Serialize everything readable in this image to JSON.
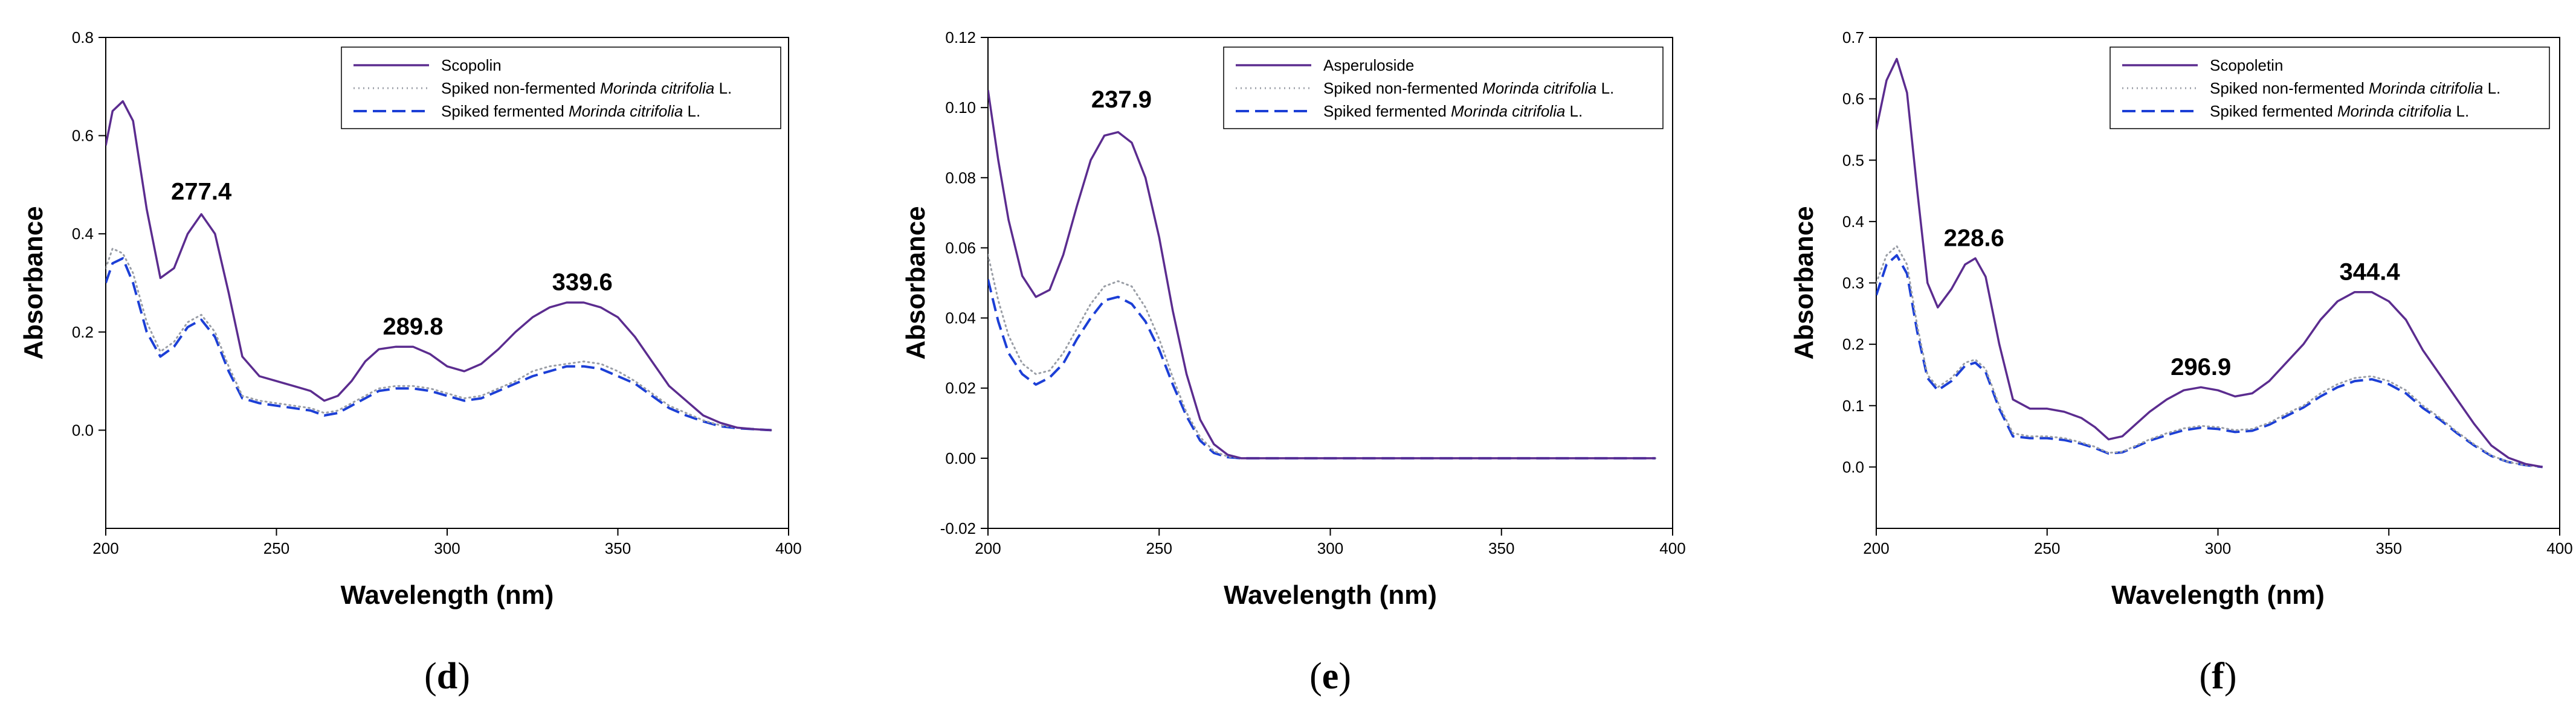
{
  "chart_data": [
    {
      "type": "line",
      "panel_label": "d",
      "xlabel": "Wavelength (nm)",
      "ylabel": "Absorbance",
      "xlim": [
        200,
        400
      ],
      "ylim": [
        -0.2,
        0.8
      ],
      "xticks": [
        200,
        250,
        300,
        350,
        400
      ],
      "yticks": [
        0.0,
        0.2,
        0.4,
        0.6,
        0.8
      ],
      "ytick_labels": [
        "0.0",
        "0.2",
        "0.4",
        "0.6",
        "0.8"
      ],
      "grid": false,
      "legend_position": "top-right",
      "legend": [
        {
          "prefix": "Scopolin",
          "italic": "",
          "suffix": ""
        },
        {
          "prefix": "Spiked non-fermented ",
          "italic": "Morinda citrifolia",
          "suffix": " L."
        },
        {
          "prefix": "Spiked fermented ",
          "italic": "Morinda citrifolia",
          "suffix": " L."
        }
      ],
      "series": [
        {
          "name": "Scopolin",
          "color": "#5b2c8f",
          "style": "solid",
          "x": [
            200,
            202,
            205,
            208,
            212,
            216,
            220,
            224,
            228,
            232,
            236,
            240,
            245,
            250,
            255,
            260,
            264,
            268,
            272,
            276,
            280,
            285,
            290,
            295,
            300,
            305,
            310,
            315,
            320,
            325,
            330,
            335,
            340,
            345,
            350,
            355,
            360,
            365,
            370,
            375,
            380,
            385,
            390,
            395
          ],
          "y": [
            0.58,
            0.65,
            0.67,
            0.63,
            0.45,
            0.31,
            0.33,
            0.4,
            0.44,
            0.4,
            0.28,
            0.15,
            0.11,
            0.1,
            0.09,
            0.08,
            0.06,
            0.07,
            0.1,
            0.14,
            0.165,
            0.17,
            0.17,
            0.155,
            0.13,
            0.12,
            0.135,
            0.165,
            0.2,
            0.23,
            0.25,
            0.26,
            0.26,
            0.25,
            0.23,
            0.19,
            0.14,
            0.09,
            0.06,
            0.03,
            0.015,
            0.005,
            0.002,
            0.0
          ]
        },
        {
          "name": "Spiked non-fermented Morinda citrifolia L.",
          "color": "#9a9ea6",
          "style": "dotted",
          "x": [
            200,
            202,
            205,
            208,
            212,
            216,
            220,
            224,
            228,
            232,
            236,
            240,
            245,
            250,
            255,
            260,
            264,
            268,
            272,
            276,
            280,
            285,
            290,
            295,
            300,
            305,
            310,
            315,
            320,
            325,
            330,
            335,
            340,
            345,
            350,
            355,
            360,
            365,
            370,
            375,
            380,
            385,
            390,
            395
          ],
          "y": [
            0.33,
            0.37,
            0.36,
            0.32,
            0.22,
            0.16,
            0.18,
            0.22,
            0.235,
            0.2,
            0.13,
            0.07,
            0.06,
            0.055,
            0.05,
            0.045,
            0.035,
            0.04,
            0.055,
            0.07,
            0.085,
            0.09,
            0.09,
            0.085,
            0.075,
            0.065,
            0.07,
            0.085,
            0.1,
            0.12,
            0.13,
            0.135,
            0.14,
            0.135,
            0.12,
            0.1,
            0.075,
            0.05,
            0.035,
            0.02,
            0.01,
            0.005,
            0.002,
            0.0
          ]
        },
        {
          "name": "Spiked fermented Morinda citrifolia L.",
          "color": "#1c3fd6",
          "style": "dashed",
          "x": [
            200,
            202,
            205,
            208,
            212,
            216,
            220,
            224,
            228,
            232,
            236,
            240,
            245,
            250,
            255,
            260,
            264,
            268,
            272,
            276,
            280,
            285,
            290,
            295,
            300,
            305,
            310,
            315,
            320,
            325,
            330,
            335,
            340,
            345,
            350,
            355,
            360,
            365,
            370,
            375,
            380,
            385,
            390,
            395
          ],
          "y": [
            0.3,
            0.34,
            0.35,
            0.3,
            0.2,
            0.15,
            0.17,
            0.21,
            0.225,
            0.19,
            0.12,
            0.065,
            0.055,
            0.05,
            0.045,
            0.04,
            0.03,
            0.035,
            0.05,
            0.065,
            0.08,
            0.085,
            0.085,
            0.08,
            0.07,
            0.06,
            0.065,
            0.08,
            0.095,
            0.11,
            0.12,
            0.13,
            0.13,
            0.125,
            0.11,
            0.095,
            0.07,
            0.045,
            0.03,
            0.018,
            0.008,
            0.004,
            0.002,
            0.0
          ]
        }
      ],
      "annotations": [
        {
          "text": "277.4",
          "x": 228,
          "y": 0.47
        },
        {
          "text": "289.8",
          "x": 290,
          "y": 0.195
        },
        {
          "text": "339.6",
          "x": 339.6,
          "y": 0.285
        }
      ]
    },
    {
      "type": "line",
      "panel_label": "e",
      "xlabel": "Wavelength (nm)",
      "ylabel": "Absorbance",
      "xlim": [
        200,
        400
      ],
      "ylim": [
        -0.02,
        0.12
      ],
      "xticks": [
        200,
        250,
        300,
        350,
        400
      ],
      "yticks": [
        -0.02,
        0.0,
        0.02,
        0.04,
        0.06,
        0.08,
        0.1,
        0.12
      ],
      "ytick_labels": [
        "-0.02",
        "0.00",
        "0.02",
        "0.04",
        "0.06",
        "0.08",
        "0.10",
        "0.12"
      ],
      "grid": false,
      "legend_position": "top-right",
      "legend": [
        {
          "prefix": "Asperuloside",
          "italic": "",
          "suffix": ""
        },
        {
          "prefix": "Spiked non-fermented ",
          "italic": "Morinda citrifolia",
          "suffix": " L."
        },
        {
          "prefix": "Spiked fermented ",
          "italic": "Morinda citrifolia",
          "suffix": " L."
        }
      ],
      "series": [
        {
          "name": "Asperuloside",
          "color": "#5b2c8f",
          "style": "solid",
          "x": [
            200,
            203,
            206,
            210,
            214,
            218,
            222,
            226,
            230,
            234,
            238,
            242,
            246,
            250,
            254,
            258,
            262,
            266,
            270,
            274,
            280,
            290,
            300,
            320,
            350,
            375,
            395
          ],
          "y": [
            0.105,
            0.085,
            0.068,
            0.052,
            0.046,
            0.048,
            0.058,
            0.072,
            0.085,
            0.092,
            0.093,
            0.09,
            0.08,
            0.063,
            0.042,
            0.024,
            0.011,
            0.004,
            0.001,
            0.0,
            0.0,
            0.0,
            0.0,
            0.0,
            0.0,
            0.0,
            0.0
          ]
        },
        {
          "name": "Spiked non-fermented Morinda citrifolia L.",
          "color": "#9a9ea6",
          "style": "dotted",
          "x": [
            200,
            203,
            206,
            210,
            214,
            218,
            222,
            226,
            230,
            234,
            238,
            242,
            246,
            250,
            254,
            258,
            262,
            266,
            270,
            274,
            280,
            290,
            300,
            320,
            350,
            375,
            395
          ],
          "y": [
            0.058,
            0.045,
            0.035,
            0.027,
            0.024,
            0.025,
            0.03,
            0.037,
            0.044,
            0.049,
            0.0505,
            0.049,
            0.043,
            0.034,
            0.023,
            0.013,
            0.006,
            0.002,
            0.0005,
            0.0,
            0.0,
            0.0,
            0.0,
            0.0,
            0.0,
            0.0,
            0.0
          ]
        },
        {
          "name": "Spiked fermented Morinda citrifolia L.",
          "color": "#1c3fd6",
          "style": "dashed",
          "x": [
            200,
            203,
            206,
            210,
            214,
            218,
            222,
            226,
            230,
            234,
            238,
            242,
            246,
            250,
            254,
            258,
            262,
            266,
            270,
            274,
            280,
            290,
            300,
            320,
            350,
            375,
            395
          ],
          "y": [
            0.051,
            0.039,
            0.03,
            0.024,
            0.021,
            0.023,
            0.027,
            0.034,
            0.04,
            0.045,
            0.046,
            0.044,
            0.039,
            0.031,
            0.021,
            0.012,
            0.005,
            0.0015,
            0.0003,
            0.0,
            0.0,
            0.0,
            0.0,
            0.0,
            0.0,
            0.0,
            0.0
          ]
        }
      ],
      "annotations": [
        {
          "text": "237.9",
          "x": 239,
          "y": 0.1
        }
      ]
    },
    {
      "type": "line",
      "panel_label": "f",
      "xlabel": "Wavelength (nm)",
      "ylabel": "Absorbance",
      "xlim": [
        200,
        400
      ],
      "ylim": [
        -0.1,
        0.7
      ],
      "xticks": [
        200,
        250,
        300,
        350,
        400
      ],
      "yticks": [
        0.0,
        0.1,
        0.2,
        0.3,
        0.4,
        0.5,
        0.6,
        0.7
      ],
      "ytick_labels": [
        "0.0",
        "0.1",
        "0.2",
        "0.3",
        "0.4",
        "0.5",
        "0.6",
        "0.7"
      ],
      "grid": false,
      "legend_position": "top-right",
      "legend": [
        {
          "prefix": "Scopoletin",
          "italic": "",
          "suffix": ""
        },
        {
          "prefix": "Spiked non-fermented ",
          "italic": "Morinda citrifolia",
          "suffix": " L."
        },
        {
          "prefix": "Spiked fermented ",
          "italic": "Morinda citrifolia",
          "suffix": " L."
        }
      ],
      "series": [
        {
          "name": "Scopoletin",
          "color": "#5b2c8f",
          "style": "solid",
          "x": [
            200,
            203,
            206,
            209,
            212,
            215,
            218,
            222,
            226,
            229,
            232,
            236,
            240,
            245,
            250,
            255,
            260,
            264,
            268,
            272,
            276,
            280,
            285,
            290,
            295,
            300,
            305,
            310,
            315,
            320,
            325,
            330,
            335,
            340,
            345,
            350,
            355,
            360,
            365,
            370,
            375,
            380,
            385,
            390,
            395
          ],
          "y": [
            0.55,
            0.63,
            0.665,
            0.61,
            0.45,
            0.3,
            0.26,
            0.29,
            0.33,
            0.34,
            0.31,
            0.2,
            0.11,
            0.095,
            0.095,
            0.09,
            0.08,
            0.065,
            0.045,
            0.05,
            0.07,
            0.09,
            0.11,
            0.125,
            0.13,
            0.125,
            0.115,
            0.12,
            0.14,
            0.17,
            0.2,
            0.24,
            0.27,
            0.285,
            0.285,
            0.27,
            0.24,
            0.19,
            0.15,
            0.11,
            0.07,
            0.035,
            0.015,
            0.005,
            0.0
          ]
        },
        {
          "name": "Spiked non-fermented Morinda citrifolia L.",
          "color": "#9a9ea6",
          "style": "dotted",
          "x": [
            200,
            203,
            206,
            209,
            212,
            215,
            218,
            222,
            226,
            229,
            232,
            236,
            240,
            245,
            250,
            255,
            260,
            264,
            268,
            272,
            276,
            280,
            285,
            290,
            295,
            300,
            305,
            310,
            315,
            320,
            325,
            330,
            335,
            340,
            345,
            350,
            355,
            360,
            365,
            370,
            375,
            380,
            385,
            390,
            395
          ],
          "y": [
            0.3,
            0.345,
            0.36,
            0.33,
            0.23,
            0.15,
            0.13,
            0.145,
            0.17,
            0.175,
            0.16,
            0.1,
            0.055,
            0.05,
            0.05,
            0.047,
            0.04,
            0.033,
            0.023,
            0.025,
            0.035,
            0.045,
            0.055,
            0.063,
            0.067,
            0.065,
            0.06,
            0.062,
            0.072,
            0.087,
            0.1,
            0.12,
            0.135,
            0.145,
            0.148,
            0.14,
            0.125,
            0.1,
            0.08,
            0.057,
            0.037,
            0.019,
            0.008,
            0.003,
            0.0
          ]
        },
        {
          "name": "Spiked fermented Morinda citrifolia L.",
          "color": "#1c3fd6",
          "style": "dashed",
          "x": [
            200,
            203,
            206,
            209,
            212,
            215,
            218,
            222,
            226,
            229,
            232,
            236,
            240,
            245,
            250,
            255,
            260,
            264,
            268,
            272,
            276,
            280,
            285,
            290,
            295,
            300,
            305,
            310,
            315,
            320,
            325,
            330,
            335,
            340,
            345,
            350,
            355,
            360,
            365,
            370,
            375,
            380,
            385,
            390,
            395
          ],
          "y": [
            0.28,
            0.33,
            0.345,
            0.315,
            0.22,
            0.145,
            0.125,
            0.14,
            0.165,
            0.17,
            0.155,
            0.095,
            0.05,
            0.047,
            0.047,
            0.044,
            0.038,
            0.031,
            0.022,
            0.024,
            0.033,
            0.043,
            0.052,
            0.06,
            0.064,
            0.062,
            0.057,
            0.059,
            0.069,
            0.083,
            0.097,
            0.115,
            0.13,
            0.14,
            0.143,
            0.135,
            0.12,
            0.096,
            0.077,
            0.055,
            0.035,
            0.018,
            0.008,
            0.003,
            0.0
          ]
        }
      ],
      "annotations": [
        {
          "text": "228.6",
          "x": 228.6,
          "y": 0.36
        },
        {
          "text": "296.9",
          "x": 295,
          "y": 0.15
        },
        {
          "text": "344.4",
          "x": 344.4,
          "y": 0.305
        }
      ]
    }
  ]
}
